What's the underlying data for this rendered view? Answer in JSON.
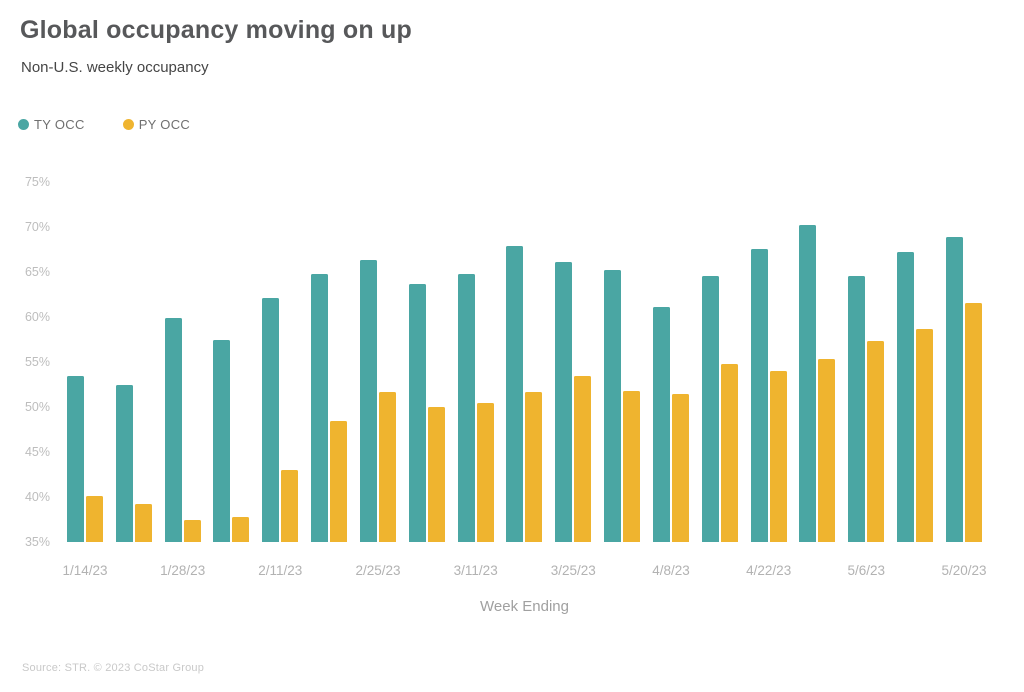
{
  "header": {
    "title": "Global occupancy moving on up",
    "subtitle": "Non-U.S. weekly occupancy"
  },
  "legend": [
    {
      "label": "TY OCC",
      "color": "#4AA6A3"
    },
    {
      "label": "PY OCC",
      "color": "#EFB42F"
    }
  ],
  "chart_data": {
    "type": "bar",
    "title": "Global occupancy moving on up",
    "subtitle": "Non-U.S. weekly occupancy",
    "xlabel": "Week Ending",
    "ylabel": "",
    "ylim": [
      35,
      75
    ],
    "ytick_labels": [
      "75%",
      "70%",
      "65%",
      "60%",
      "55%",
      "50%",
      "45%",
      "40%",
      "35%"
    ],
    "grid": false,
    "legend_position": "top-left",
    "categories": [
      "1/14/23",
      "1/21/23",
      "1/28/23",
      "2/4/23",
      "2/11/23",
      "2/18/23",
      "2/25/23",
      "3/4/23",
      "3/11/23",
      "3/18/23",
      "3/25/23",
      "4/1/23",
      "4/8/23",
      "4/15/23",
      "4/22/23",
      "4/29/23",
      "5/6/23",
      "5/13/23",
      "5/20/23"
    ],
    "xtick_labels_shown": [
      "1/14/23",
      "1/28/23",
      "2/11/23",
      "2/25/23",
      "3/11/23",
      "3/25/23",
      "4/8/23",
      "4/22/23",
      "5/6/23",
      "5/20/23"
    ],
    "series": [
      {
        "name": "TY OCC",
        "color": "#4AA6A3",
        "values": [
          53.4,
          52.4,
          59.9,
          57.4,
          62.1,
          64.8,
          66.3,
          63.7,
          64.8,
          67.9,
          66.1,
          65.2,
          61.1,
          64.6,
          67.6,
          70.2,
          64.6,
          67.2,
          68.9
        ]
      },
      {
        "name": "PY OCC",
        "color": "#EFB42F",
        "values": [
          40.1,
          39.2,
          37.5,
          37.8,
          43.0,
          48.4,
          51.7,
          50.0,
          50.4,
          51.7,
          53.5,
          51.8,
          51.5,
          54.8,
          54.0,
          55.3,
          57.3,
          58.7,
          61.6
        ]
      }
    ]
  },
  "footer": {
    "source": "Source: STR. © 2023 CoStar Group"
  }
}
